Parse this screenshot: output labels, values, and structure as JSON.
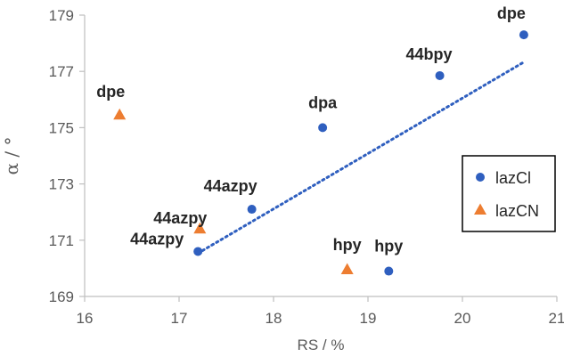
{
  "colors": {
    "lazCl": "#2f5fbf",
    "lazCN": "#ed7d31",
    "trendline": "#2f5fbf",
    "axis": "#bfbfbf",
    "text": "#262626"
  },
  "chart_data": {
    "type": "scatter",
    "xlabel": "RS / %",
    "ylabel": "α / °",
    "xlim": [
      16,
      21
    ],
    "ylim": [
      169,
      179
    ],
    "xticks": [
      "16",
      "17",
      "18",
      "19",
      "20",
      "21"
    ],
    "yticks": [
      "169",
      "171",
      "173",
      "175",
      "177",
      "179"
    ],
    "grid": false,
    "legend_position": "right",
    "series": [
      {
        "name": "lazCl",
        "marker": "circle",
        "points": [
          {
            "label": "44azpy",
            "x": 17.2,
            "y": 170.6
          },
          {
            "label": "44azpy",
            "x": 17.77,
            "y": 172.1
          },
          {
            "label": "dpa",
            "x": 18.52,
            "y": 175.0
          },
          {
            "label": "44bpy",
            "x": 19.76,
            "y": 176.85
          },
          {
            "label": "dpe",
            "x": 20.65,
            "y": 178.3
          },
          {
            "label": "hpy",
            "x": 19.22,
            "y": 169.9
          }
        ]
      },
      {
        "name": "lazCN",
        "marker": "triangle",
        "points": [
          {
            "label": "dpe",
            "x": 16.37,
            "y": 175.45
          },
          {
            "label": "44azpy",
            "x": 17.22,
            "y": 171.4
          },
          {
            "label": "hpy",
            "x": 18.78,
            "y": 169.95
          }
        ]
      }
    ],
    "trendline": {
      "series": "lazCl",
      "style": "dotted",
      "x_range": [
        17.2,
        20.65
      ]
    }
  }
}
